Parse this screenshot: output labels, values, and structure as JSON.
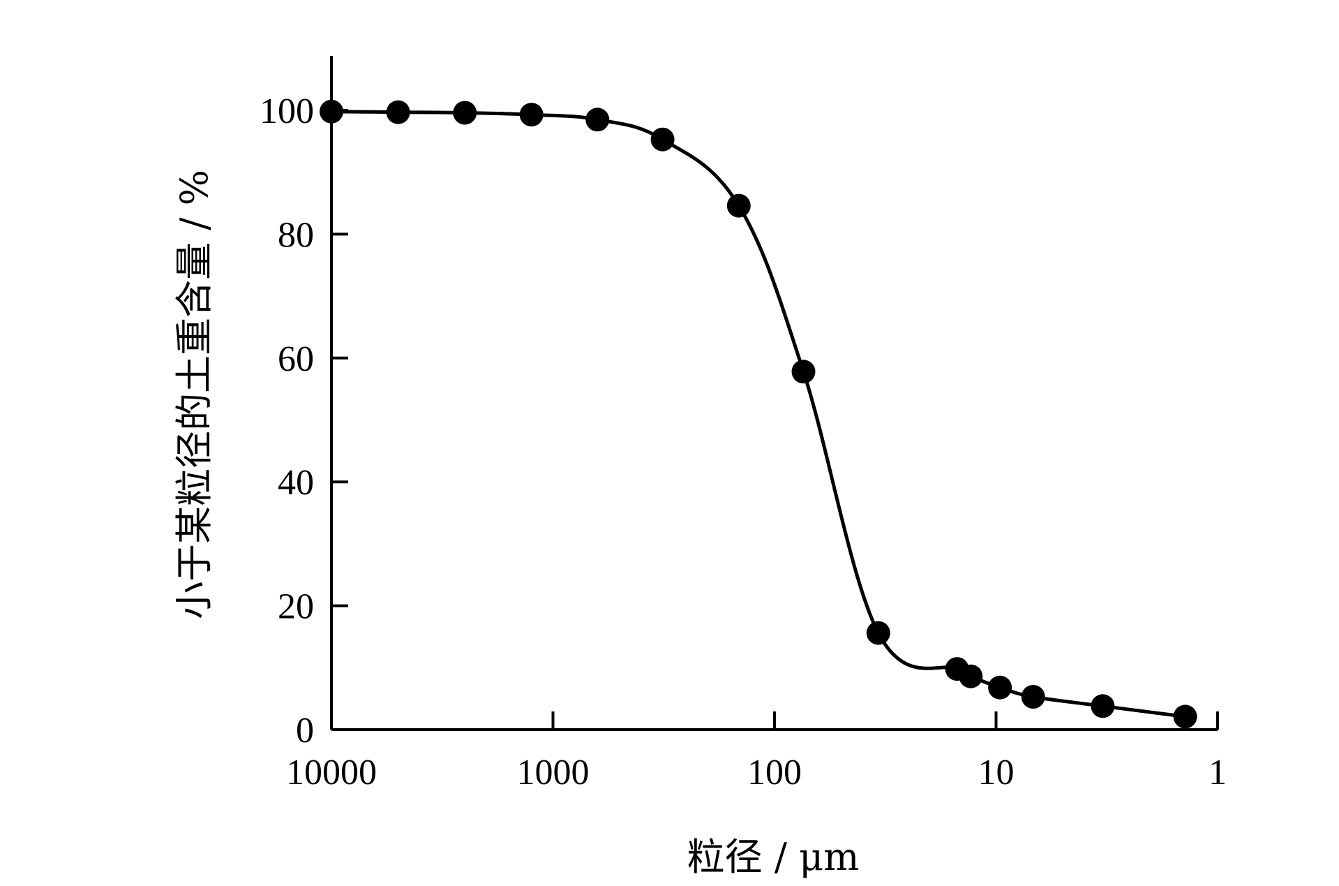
{
  "chart_data": {
    "type": "line",
    "title": "",
    "xlabel": "粒径 / μm",
    "ylabel": "小于某粒径的土重含量 / %",
    "x_scale": "log",
    "x_reversed": true,
    "xlim": [
      10000,
      1
    ],
    "ylim": [
      0,
      100
    ],
    "x_ticks": [
      10000,
      1000,
      100,
      10,
      1
    ],
    "x_tick_labels": [
      "10000",
      "1000",
      "100",
      "10",
      "1"
    ],
    "y_ticks": [
      0,
      20,
      40,
      60,
      80,
      100
    ],
    "y_tick_labels": [
      "0",
      "20",
      "40",
      "60",
      "80",
      "100"
    ],
    "grid": false,
    "legend": "none",
    "series": [
      {
        "marker": "filled-circle",
        "color": "#000000",
        "points": [
          {
            "x": 10000,
            "y": 99.8
          },
          {
            "x": 5000,
            "y": 99.7
          },
          {
            "x": 2500,
            "y": 99.6
          },
          {
            "x": 1250,
            "y": 99.3
          },
          {
            "x": 630,
            "y": 98.5
          },
          {
            "x": 320,
            "y": 95.3
          },
          {
            "x": 145,
            "y": 84.6
          },
          {
            "x": 74,
            "y": 57.8
          },
          {
            "x": 34,
            "y": 15.6
          },
          {
            "x": 15,
            "y": 9.8
          },
          {
            "x": 13,
            "y": 8.6
          },
          {
            "x": 9.6,
            "y": 6.8
          },
          {
            "x": 6.8,
            "y": 5.3
          },
          {
            "x": 3.3,
            "y": 3.8
          },
          {
            "x": 1.4,
            "y": 2.1
          }
        ]
      }
    ]
  }
}
